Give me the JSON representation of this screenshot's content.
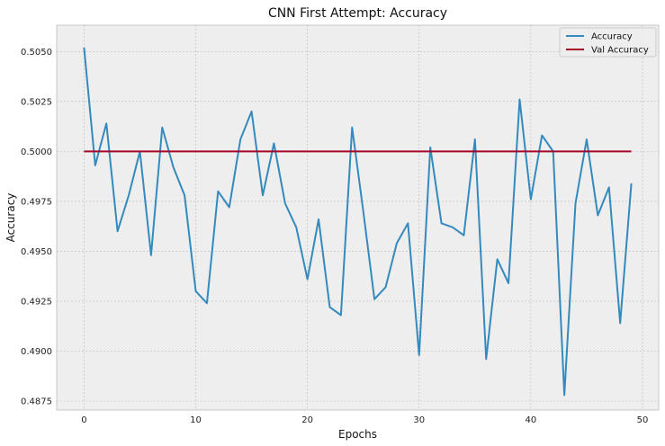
{
  "chart_data": {
    "type": "line",
    "title": "CNN First Attempt: Accuracy",
    "xlabel": "Epochs",
    "ylabel": "Accuracy",
    "xlim": [
      -2.45,
      51.45
    ],
    "ylim": [
      0.48705,
      0.50632
    ],
    "xticks": [
      0,
      10,
      20,
      30,
      40,
      50
    ],
    "yticks": [
      0.4875,
      0.49,
      0.4925,
      0.495,
      0.4975,
      0.5,
      0.5025,
      0.505
    ],
    "ytick_labels": [
      "0.4875",
      "0.4900",
      "0.4925",
      "0.4950",
      "0.4975",
      "0.5000",
      "0.5025",
      "0.5050"
    ],
    "grid": true,
    "legend_position": "top-right",
    "series": [
      {
        "name": "Accuracy",
        "color": "#348ABD",
        "x": [
          0,
          1,
          2,
          3,
          4,
          5,
          6,
          7,
          8,
          9,
          10,
          11,
          12,
          13,
          14,
          15,
          16,
          17,
          18,
          19,
          20,
          21,
          22,
          23,
          24,
          25,
          26,
          27,
          28,
          29,
          30,
          31,
          32,
          33,
          34,
          35,
          36,
          37,
          38,
          39,
          40,
          41,
          42,
          43,
          44,
          45,
          46,
          47,
          48,
          49
        ],
        "values": [
          0.5052,
          0.4993,
          0.5014,
          0.496,
          0.4978,
          0.5,
          0.4948,
          0.5012,
          0.4992,
          0.4978,
          0.493,
          0.4924,
          0.498,
          0.4972,
          0.5006,
          0.502,
          0.4978,
          0.5004,
          0.4974,
          0.4962,
          0.4936,
          0.4966,
          0.4922,
          0.4918,
          0.5012,
          0.497,
          0.4926,
          0.4932,
          0.4954,
          0.4964,
          0.4898,
          0.5002,
          0.4964,
          0.4962,
          0.4958,
          0.5006,
          0.4896,
          0.4946,
          0.4934,
          0.5026,
          0.4976,
          0.5008,
          0.5,
          0.4878,
          0.4974,
          0.5006,
          0.4968,
          0.4982,
          0.4914,
          0.4984
        ]
      },
      {
        "name": "Val Accuracy",
        "color": "#A60628",
        "x": [
          0,
          1,
          2,
          3,
          4,
          5,
          6,
          7,
          8,
          9,
          10,
          11,
          12,
          13,
          14,
          15,
          16,
          17,
          18,
          19,
          20,
          21,
          22,
          23,
          24,
          25,
          26,
          27,
          28,
          29,
          30,
          31,
          32,
          33,
          34,
          35,
          36,
          37,
          38,
          39,
          40,
          41,
          42,
          43,
          44,
          45,
          46,
          47,
          48,
          49
        ],
        "values": [
          0.5,
          0.5,
          0.5,
          0.5,
          0.5,
          0.5,
          0.5,
          0.5,
          0.5,
          0.5,
          0.5,
          0.5,
          0.5,
          0.5,
          0.5,
          0.5,
          0.5,
          0.5,
          0.5,
          0.5,
          0.5,
          0.5,
          0.5,
          0.5,
          0.5,
          0.5,
          0.5,
          0.5,
          0.5,
          0.5,
          0.5,
          0.5,
          0.5,
          0.5,
          0.5,
          0.5,
          0.5,
          0.5,
          0.5,
          0.5,
          0.5,
          0.5,
          0.5,
          0.5,
          0.5,
          0.5,
          0.5,
          0.5,
          0.5,
          0.5
        ]
      }
    ],
    "style": {
      "plot_background": "#EEEEEE",
      "grid_color": "#BBBBBB"
    }
  }
}
